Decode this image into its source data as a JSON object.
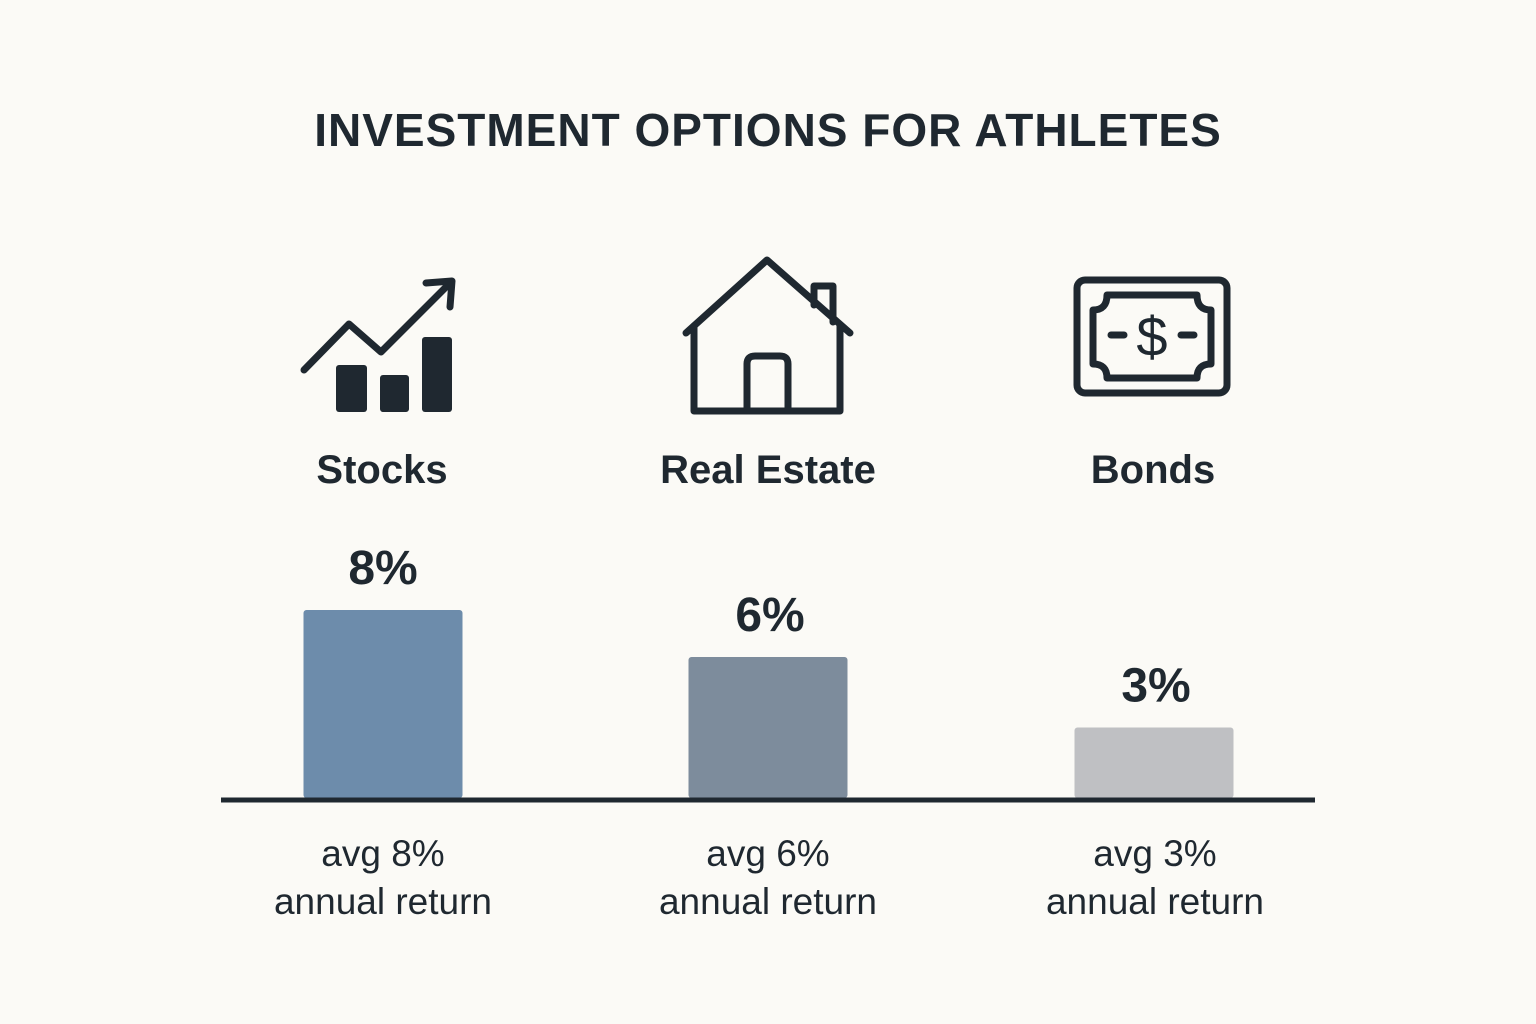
{
  "chart_data": {
    "type": "bar",
    "title": "INVESTMENT OPTIONS FOR ATHLETES",
    "categories": [
      "Stocks",
      "Real Estate",
      "Bonds"
    ],
    "values": [
      8,
      6,
      3
    ],
    "value_labels": [
      "8%",
      "6%",
      "3%"
    ],
    "captions": [
      [
        "avg 8%",
        "annual return"
      ],
      [
        "avg 6%",
        "annual return"
      ],
      [
        "avg 3%",
        "annual return"
      ]
    ],
    "icons": [
      "trending-chart-icon",
      "house-icon",
      "banknote-icon"
    ],
    "colors": [
      "#6d8cab",
      "#7d8c9c",
      "#bfc0c3"
    ],
    "ylim": [
      0,
      8
    ],
    "xlabel": "",
    "ylabel": "",
    "grid": false,
    "legend": "none"
  }
}
